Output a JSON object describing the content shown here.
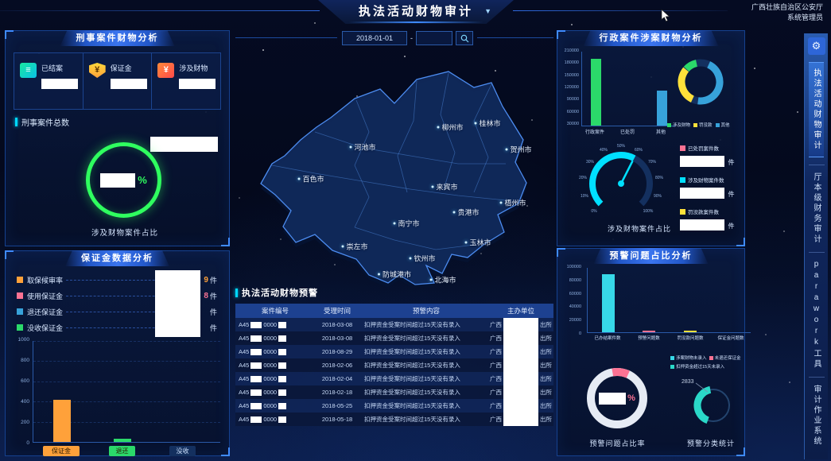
{
  "header": {
    "title": "执法活动财物审计",
    "dropdown_icon": "▼",
    "org": "广西壮族自治区公安厅",
    "user": "系统管理员"
  },
  "colors": {
    "background": "#04091d",
    "panel_border": "#15418f",
    "accent_cyan": "#00e0ff",
    "green": "#2bd96a",
    "orange": "#ffa13a",
    "yellow": "#ffe13a",
    "pink": "#fb7293",
    "blue": "#37a2da"
  },
  "filters": {
    "date_start": "2018-01-01",
    "date_separator": "-",
    "date_end": ""
  },
  "sidebar": {
    "gear_icon": "⚙",
    "items": [
      {
        "label": "执法活动财物审计",
        "active": true
      },
      {
        "label": "厅本级财务审计",
        "active": false
      },
      {
        "label": "parawork工具",
        "active": false
      },
      {
        "label": "审计作业系统",
        "active": false
      }
    ]
  },
  "criminal_panel": {
    "title": "刑事案件财物分析",
    "stats": [
      {
        "label": "已结案",
        "icon": "closed-case-icon"
      },
      {
        "label": "保证金",
        "icon": "deposit-icon"
      },
      {
        "label": "涉及财物",
        "icon": "property-icon"
      }
    ],
    "total_label": "刑事案件总数",
    "ratio_unit": "%",
    "ratio_caption": "涉及财物案件占比"
  },
  "deposit_panel": {
    "title": "保证金数据分析",
    "legend": [
      {
        "label": "取保候审率",
        "color": "#ffa13a",
        "visible_digit": "9",
        "unit": "件"
      },
      {
        "label": "使用保证金",
        "color": "#fb7293",
        "visible_digit": "8",
        "unit": "件"
      },
      {
        "label": "退还保证金",
        "color": "#37a2da",
        "visible_digit": "",
        "unit": "件"
      },
      {
        "label": "没收保证金",
        "color": "#2bd96a",
        "visible_digit": "",
        "unit": "件"
      }
    ],
    "chart_data": {
      "type": "bar",
      "categories": [
        "保证金",
        "退还",
        "没收"
      ],
      "values": [
        420,
        30,
        0
      ],
      "colors": [
        "#ffa13a",
        "#2bd96a",
        "#1b3e7e"
      ],
      "ylim": [
        0,
        1000
      ],
      "yticks": [
        "1000",
        "800",
        "600",
        "400",
        "200",
        "0"
      ]
    }
  },
  "map": {
    "cities": [
      {
        "name": "桂林市"
      },
      {
        "name": "柳州市"
      },
      {
        "name": "河池市"
      },
      {
        "name": "贺州市"
      },
      {
        "name": "百色市"
      },
      {
        "name": "来宾市"
      },
      {
        "name": "梧州市"
      },
      {
        "name": "贵港市"
      },
      {
        "name": "南宁市"
      },
      {
        "name": "玉林市"
      },
      {
        "name": "崇左市"
      },
      {
        "name": "钦州市"
      },
      {
        "name": "防城港市"
      },
      {
        "name": "北海市"
      }
    ]
  },
  "warning_list": {
    "title": "执法活动财物预警",
    "columns": [
      "案件编号",
      "受理时间",
      "预警内容",
      "主办单位"
    ],
    "rows": [
      {
        "case_prefix": "A45",
        "case_mid": "0000",
        "date": "2018-03-08",
        "content": "扣押资金受案时间超过15天没有录入",
        "org_prefix": "广西",
        "org_suffix": "出所"
      },
      {
        "case_prefix": "A45",
        "case_mid": "0000",
        "date": "2018-03-08",
        "content": "扣押资金受案时间超过15天没有录入",
        "org_prefix": "广西",
        "org_suffix": "出所"
      },
      {
        "case_prefix": "A45",
        "case_mid": "0000",
        "date": "2018-08-29",
        "content": "扣押资金受案时间超过15天没有录入",
        "org_prefix": "广西",
        "org_suffix": "出所"
      },
      {
        "case_prefix": "A45",
        "case_mid": "0000",
        "date": "2018-02-06",
        "content": "扣押资金受案时间超过15天没有录入",
        "org_prefix": "广西",
        "org_suffix": "出所"
      },
      {
        "case_prefix": "A45",
        "case_mid": "0000",
        "date": "2018-02-04",
        "content": "扣押资金受案时间超过15天没有录入",
        "org_prefix": "广西",
        "org_suffix": "出所"
      },
      {
        "case_prefix": "A45",
        "case_mid": "0000",
        "date": "2018-02-18",
        "content": "扣押资金受案时间超过15天没有录入",
        "org_prefix": "广西",
        "org_suffix": "出所"
      },
      {
        "case_prefix": "A45",
        "case_mid": "0000",
        "date": "2018-05-25",
        "content": "扣押资金受案时间超过15天没有录入",
        "org_prefix": "广西",
        "org_suffix": "出所"
      },
      {
        "case_prefix": "A45",
        "case_mid": "0000",
        "date": "2018-05-18",
        "content": "扣押资金受案时间超过15天没有录入",
        "org_prefix": "广西",
        "org_suffix": "出所"
      }
    ]
  },
  "admin_panel": {
    "title": "行政案件涉案财物分析",
    "chart_data": {
      "type": "bar",
      "categories": [
        "行政案件",
        "已处罚",
        "其他"
      ],
      "values": [
        190000,
        0,
        100000
      ],
      "colors": [
        "#2bd96a",
        "#ffe13a",
        "#37a2da"
      ],
      "ylim": [
        0,
        210000
      ],
      "yticks": [
        "210000",
        "180000",
        "150000",
        "120000",
        "90000",
        "60000",
        "30000"
      ]
    },
    "donut_legend": [
      {
        "label": "涉及财物",
        "color": "#2bd96a"
      },
      {
        "label": "罚没款",
        "color": "#ffe13a"
      },
      {
        "label": "其他",
        "color": "#37a2da"
      }
    ],
    "gauge": {
      "tick_labels": [
        "0%",
        "10%",
        "20%",
        "30%",
        "40%",
        "50%",
        "60%",
        "70%",
        "80%",
        "90%",
        "100%"
      ],
      "caption": "涉及财物案件占比"
    },
    "stats": [
      {
        "label": "已处罚案件数",
        "color": "#fb7293",
        "unit": "件"
      },
      {
        "label": "涉及财物案件数",
        "color": "#00e0ff",
        "unit": "件"
      },
      {
        "label": "罚没款案件数",
        "color": "#ffe13a",
        "unit": "件"
      }
    ]
  },
  "warning_panel": {
    "title": "预警问题占比分析",
    "chart_data": {
      "type": "bar",
      "categories": [
        "已办结案件数",
        "预警问题数",
        "罚没款问题数",
        "保证金问题数"
      ],
      "values": [
        90000,
        2500,
        2200,
        0
      ],
      "colors": [
        "#37d8e8",
        "#fb7293",
        "#ffe13a",
        "#2bd96a"
      ],
      "ylim": [
        0,
        100000
      ],
      "yticks": [
        "100000",
        "80000",
        "60000",
        "40000",
        "20000",
        "0"
      ]
    },
    "legend": [
      {
        "label": "涉案财物未录入",
        "color": "#37d8e8"
      },
      {
        "label": "未退还保证金",
        "color": "#fb7293"
      },
      {
        "label": "扣押资金超过15天未录入",
        "color": "#2ad8c8"
      }
    ],
    "ratio_unit": "%",
    "ratio_caption": "预警问题占比率",
    "category_stat": {
      "value": "2833",
      "caption": "预警分类统计"
    }
  }
}
